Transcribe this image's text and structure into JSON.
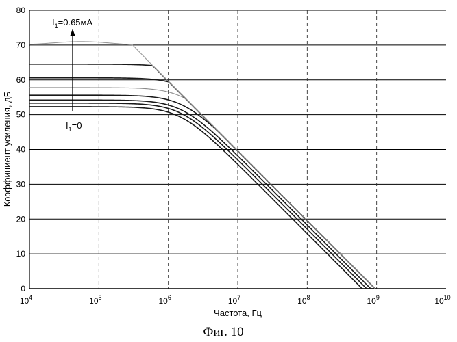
{
  "chart_data": {
    "type": "line",
    "caption": "Фиг. 10",
    "xlabel": "Частота, Гц",
    "ylabel": "Коэффициент усиления, дБ",
    "x_scale": "log",
    "xlim": [
      10000,
      10000000000
    ],
    "ylim": [
      0,
      80
    ],
    "grid": {
      "horizontal": true,
      "vertical": true,
      "vertical_style": "dashed"
    },
    "x_ticks": [
      {
        "base": "10",
        "exp": "4",
        "value": 10000
      },
      {
        "base": "10",
        "exp": "5",
        "value": 100000
      },
      {
        "base": "10",
        "exp": "6",
        "value": 1000000
      },
      {
        "base": "10",
        "exp": "7",
        "value": 10000000
      },
      {
        "base": "10",
        "exp": "8",
        "value": 100000000
      },
      {
        "base": "10",
        "exp": "9",
        "value": 1000000000
      },
      {
        "base": "10",
        "exp": "10",
        "value": 10000000000
      }
    ],
    "y_ticks": [
      "0",
      "10",
      "20",
      "30",
      "40",
      "50",
      "60",
      "70",
      "80"
    ],
    "annotations": {
      "top_label": {
        "main": "I",
        "sub": "1",
        "rest": "=0.65мА"
      },
      "bottom_label": {
        "main": "I",
        "sub": "1",
        "rest": "=0"
      }
    },
    "series": [
      {
        "dc_gain": 52.3,
        "corner_hz": 1500000,
        "peak": 0,
        "color": "#1a1a1a",
        "width": 1.6
      },
      {
        "dc_gain": 53.3,
        "corner_hz": 1550000,
        "peak": 0,
        "color": "#1a1a1a",
        "width": 1.6
      },
      {
        "dc_gain": 54.2,
        "corner_hz": 1600000,
        "peak": 0,
        "color": "#1a1a1a",
        "width": 1.6
      },
      {
        "dc_gain": 55.6,
        "corner_hz": 1650000,
        "peak": 0,
        "color": "#1a1a1a",
        "width": 1.6
      },
      {
        "dc_gain": 57.8,
        "corner_hz": 1700000,
        "peak": 0,
        "color": "#8a8a8a",
        "width": 1.1
      },
      {
        "dc_gain": 60.6,
        "corner_hz": 1800000,
        "peak": 0,
        "color": "#1a1a1a",
        "width": 1.6
      },
      {
        "dc_gain": 64.5,
        "corner_hz": 1900000,
        "peak": 0,
        "color": "#1a1a1a",
        "width": 1.6
      },
      {
        "dc_gain": 70.0,
        "corner_hz": 1500000,
        "peak": 1.0,
        "color": "#9a9a9a",
        "width": 1.1
      }
    ],
    "unity_gain_hz": 950000000,
    "rolloff_db_per_decade": -20
  }
}
